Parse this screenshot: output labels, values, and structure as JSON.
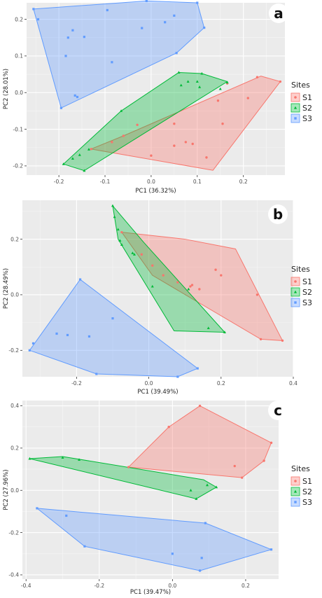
{
  "legend": {
    "title": "Sites",
    "entries": [
      {
        "label": "S1",
        "color": "#f8766d",
        "shape": "circle"
      },
      {
        "label": "S2",
        "color": "#00ba38",
        "shape": "triangle"
      },
      {
        "label": "S3",
        "color": "#619cff",
        "shape": "square"
      }
    ]
  },
  "chart_data": [
    {
      "type": "scatter",
      "panel_label": "a",
      "xlabel": "PC1 (36.32%)",
      "ylabel": "PC2 (28.01%)",
      "xlim": [
        -0.27,
        0.29
      ],
      "ylim": [
        -0.225,
        0.245
      ],
      "xticks": [
        -0.2,
        -0.1,
        0.0,
        0.1,
        0.2
      ],
      "yticks": [
        -0.2,
        -0.1,
        0.0,
        0.1,
        0.2
      ],
      "xtick_labels": [
        "-0.2",
        "-0.1",
        "0.0",
        "0.1",
        "0.2"
      ],
      "ytick_labels": [
        "-0.2",
        "-0.1",
        "0.0",
        "0.1",
        "0.2"
      ],
      "legend_position": "right",
      "series": [
        {
          "name": "S1",
          "points": [
            [
              -0.13,
              -0.154
            ],
            [
              -0.085,
              -0.135
            ],
            [
              -0.06,
              -0.118
            ],
            [
              -0.03,
              -0.088
            ],
            [
              0.0,
              -0.172
            ],
            [
              0.05,
              -0.145
            ],
            [
              0.05,
              -0.085
            ],
            [
              0.075,
              -0.135
            ],
            [
              0.09,
              -0.14
            ],
            [
              0.12,
              -0.177
            ],
            [
              0.145,
              -0.022
            ],
            [
              0.155,
              -0.085
            ],
            [
              0.165,
              0.025
            ],
            [
              0.21,
              -0.015
            ],
            [
              0.23,
              0.042
            ],
            [
              0.28,
              0.03
            ]
          ],
          "hull": [
            [
              -0.13,
              -0.154
            ],
            [
              0.134,
              -0.212
            ],
            [
              0.28,
              0.03
            ],
            [
              0.238,
              0.045
            ],
            [
              -0.06,
              -0.118
            ]
          ]
        },
        {
          "name": "S2",
          "points": [
            [
              -0.19,
              -0.195
            ],
            [
              -0.17,
              -0.18
            ],
            [
              -0.155,
              -0.17
            ],
            [
              -0.145,
              -0.213
            ],
            [
              -0.135,
              -0.155
            ],
            [
              -0.065,
              -0.05
            ],
            [
              0.06,
              0.055
            ],
            [
              0.065,
              0.02
            ],
            [
              0.08,
              0.03
            ],
            [
              0.1,
              0.03
            ],
            [
              0.105,
              0.015
            ],
            [
              0.11,
              0.052
            ],
            [
              0.15,
              0.01
            ],
            [
              0.165,
              0.028
            ]
          ],
          "hull": [
            [
              -0.19,
              -0.195
            ],
            [
              -0.145,
              -0.213
            ],
            [
              0.165,
              0.03
            ],
            [
              0.11,
              0.052
            ],
            [
              0.06,
              0.055
            ],
            [
              -0.065,
              -0.05
            ]
          ]
        },
        {
          "name": "S3",
          "points": [
            [
              -0.255,
              0.228
            ],
            [
              -0.245,
              0.2
            ],
            [
              -0.195,
              -0.042
            ],
            [
              -0.185,
              0.1
            ],
            [
              -0.18,
              0.15
            ],
            [
              -0.17,
              0.17
            ],
            [
              -0.165,
              -0.008
            ],
            [
              -0.16,
              -0.012
            ],
            [
              -0.145,
              0.152
            ],
            [
              -0.095,
              0.225
            ],
            [
              -0.085,
              0.083
            ],
            [
              -0.02,
              0.176
            ],
            [
              -0.01,
              0.25
            ],
            [
              0.03,
              0.192
            ],
            [
              0.05,
              0.21
            ],
            [
              0.055,
              0.108
            ],
            [
              0.1,
              0.245
            ],
            [
              0.115,
              0.177
            ]
          ],
          "hull": [
            [
              -0.255,
              0.228
            ],
            [
              -0.01,
              0.25
            ],
            [
              0.1,
              0.245
            ],
            [
              0.115,
              0.177
            ],
            [
              0.055,
              0.108
            ],
            [
              -0.195,
              -0.042
            ]
          ]
        }
      ]
    },
    {
      "type": "scatter",
      "panel_label": "b",
      "xlabel": "PC1 (39.49%)",
      "ylabel": "PC2 (28.49%)",
      "xlim": [
        -0.35,
        0.4
      ],
      "ylim": [
        -0.295,
        0.34
      ],
      "xticks": [
        -0.2,
        0.0,
        0.2,
        0.4
      ],
      "yticks": [
        -0.2,
        0.0,
        0.2
      ],
      "xtick_labels": [
        "-0.2",
        "0.0",
        "0.2",
        "0.4"
      ],
      "ytick_labels": [
        "-0.2",
        "0.0",
        "0.2"
      ],
      "legend_position": "right",
      "series": [
        {
          "name": "S1",
          "points": [
            [
              -0.075,
              0.225
            ],
            [
              -0.02,
              0.145
            ],
            [
              0.01,
              0.105
            ],
            [
              0.04,
              0.07
            ],
            [
              0.08,
              0.045
            ],
            [
              0.115,
              0.03
            ],
            [
              0.12,
              0.035
            ],
            [
              0.14,
              0.02
            ],
            [
              0.185,
              0.09
            ],
            [
              0.2,
              0.07
            ],
            [
              0.3,
              0.0
            ],
            [
              0.31,
              -0.16
            ],
            [
              0.37,
              -0.165
            ]
          ],
          "hull": [
            [
              -0.075,
              0.225
            ],
            [
              0.1,
              0.2
            ],
            [
              0.24,
              0.165
            ],
            [
              0.37,
              -0.165
            ],
            [
              0.31,
              -0.16
            ],
            [
              0.01,
              0.07
            ]
          ]
        },
        {
          "name": "S2",
          "points": [
            [
              -0.1,
              0.32
            ],
            [
              -0.095,
              0.28
            ],
            [
              -0.085,
              0.235
            ],
            [
              -0.08,
              0.195
            ],
            [
              -0.075,
              0.18
            ],
            [
              -0.045,
              0.15
            ],
            [
              -0.04,
              0.145
            ],
            [
              0.01,
              0.03
            ],
            [
              0.11,
              0.02
            ],
            [
              0.165,
              -0.12
            ],
            [
              0.21,
              -0.135
            ]
          ],
          "hull": [
            [
              -0.1,
              0.32
            ],
            [
              -0.015,
              0.19
            ],
            [
              0.21,
              -0.135
            ],
            [
              0.07,
              -0.13
            ],
            [
              -0.085,
              0.2
            ]
          ]
        },
        {
          "name": "S3",
          "points": [
            [
              -0.33,
              -0.2
            ],
            [
              -0.32,
              -0.175
            ],
            [
              -0.255,
              -0.14
            ],
            [
              -0.225,
              -0.145
            ],
            [
              -0.165,
              -0.15
            ],
            [
              -0.1,
              -0.085
            ],
            [
              -0.19,
              0.055
            ],
            [
              -0.145,
              -0.285
            ],
            [
              0.08,
              -0.295
            ],
            [
              0.135,
              -0.265
            ]
          ],
          "hull": [
            [
              -0.33,
              -0.2
            ],
            [
              -0.19,
              0.055
            ],
            [
              0.135,
              -0.265
            ],
            [
              0.08,
              -0.295
            ],
            [
              -0.145,
              -0.285
            ]
          ]
        }
      ]
    },
    {
      "type": "scatter",
      "panel_label": "c",
      "xlabel": "PC1 (39.47%)",
      "ylabel": "PC2 (27.96%)",
      "xlim": [
        -0.41,
        0.29
      ],
      "ylim": [
        -0.42,
        0.425
      ],
      "xticks": [
        -0.4,
        -0.2,
        0.0,
        0.2
      ],
      "yticks": [
        -0.4,
        -0.2,
        0.0,
        0.2,
        0.4
      ],
      "xtick_labels": [
        "-0.4",
        "-0.2",
        "0.0",
        "0.2"
      ],
      "ytick_labels": [
        "-0.4",
        "-0.2",
        "0.0",
        "0.2",
        "0.4"
      ],
      "legend_position": "right",
      "series": [
        {
          "name": "S1",
          "points": [
            [
              -0.12,
              0.11
            ],
            [
              -0.01,
              0.3
            ],
            [
              0.075,
              0.4
            ],
            [
              0.17,
              0.115
            ],
            [
              0.19,
              0.06
            ],
            [
              0.25,
              0.14
            ],
            [
              0.27,
              0.225
            ]
          ],
          "hull": [
            [
              -0.12,
              0.11
            ],
            [
              -0.01,
              0.3
            ],
            [
              0.075,
              0.4
            ],
            [
              0.27,
              0.225
            ],
            [
              0.25,
              0.14
            ],
            [
              0.19,
              0.06
            ]
          ]
        },
        {
          "name": "S2",
          "points": [
            [
              -0.39,
              0.15
            ],
            [
              -0.3,
              0.155
            ],
            [
              -0.255,
              0.145
            ],
            [
              0.05,
              0.0
            ],
            [
              0.065,
              -0.04
            ],
            [
              0.095,
              0.025
            ],
            [
              0.12,
              0.015
            ]
          ],
          "hull": [
            [
              -0.39,
              0.15
            ],
            [
              -0.3,
              0.16
            ],
            [
              0.085,
              0.05
            ],
            [
              0.12,
              0.015
            ],
            [
              0.065,
              -0.04
            ]
          ]
        },
        {
          "name": "S3",
          "points": [
            [
              -0.37,
              -0.085
            ],
            [
              -0.29,
              -0.12
            ],
            [
              -0.24,
              -0.265
            ],
            [
              0.0,
              -0.3
            ],
            [
              0.075,
              -0.38
            ],
            [
              0.08,
              -0.32
            ],
            [
              0.09,
              -0.155
            ],
            [
              0.27,
              -0.28
            ]
          ],
          "hull": [
            [
              -0.37,
              -0.085
            ],
            [
              0.09,
              -0.155
            ],
            [
              0.27,
              -0.28
            ],
            [
              0.075,
              -0.38
            ],
            [
              -0.24,
              -0.265
            ]
          ]
        }
      ]
    }
  ]
}
